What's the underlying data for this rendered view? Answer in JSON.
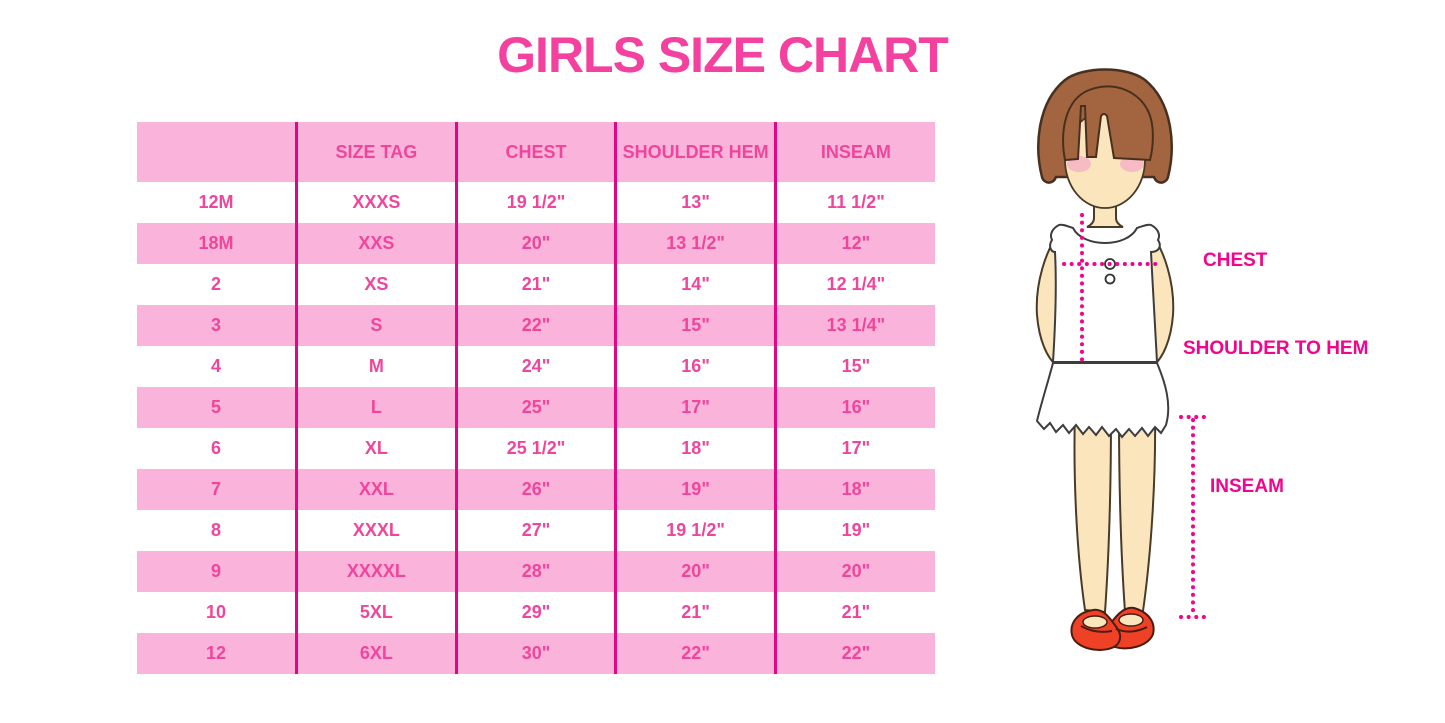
{
  "title": "GIRLS SIZE CHART",
  "colors": {
    "title_pink": "#F4419F",
    "table_text_pink": "#F0459C",
    "row_stripe_pink": "#FAB4DB",
    "column_divider_magenta": "#E10684",
    "figure_label_pink": "#F2058C"
  },
  "size_table": {
    "columns": [
      "",
      "SIZE TAG",
      "CHEST",
      "SHOULDER HEM",
      "INSEAM"
    ],
    "rows": [
      [
        "12M",
        "XXXS",
        "19 1/2\"",
        "13\"",
        "11 1/2\""
      ],
      [
        "18M",
        "XXS",
        "20\"",
        "13 1/2\"",
        "12\""
      ],
      [
        "2",
        "XS",
        "21\"",
        "14\"",
        "12 1/4\""
      ],
      [
        "3",
        "S",
        "22\"",
        "15\"",
        "13 1/4\""
      ],
      [
        "4",
        "M",
        "24\"",
        "16\"",
        "15\""
      ],
      [
        "5",
        "L",
        "25\"",
        "17\"",
        "16\""
      ],
      [
        "6",
        "XL",
        "25 1/2\"",
        "18\"",
        "17\""
      ],
      [
        "7",
        "XXL",
        "26\"",
        "19\"",
        "18\""
      ],
      [
        "8",
        "XXXL",
        "27\"",
        "19 1/2\"",
        "19\""
      ],
      [
        "9",
        "XXXXL",
        "28\"",
        "20\"",
        "20\""
      ],
      [
        "10",
        "5XL",
        "29\"",
        "21\"",
        "21\""
      ],
      [
        "12",
        "6XL",
        "30\"",
        "22\"",
        "22\""
      ]
    ]
  },
  "figure_labels": {
    "chest": "CHEST",
    "shoulder_to_hem": "SHOULDER TO HEM",
    "inseam": "INSEAM"
  }
}
